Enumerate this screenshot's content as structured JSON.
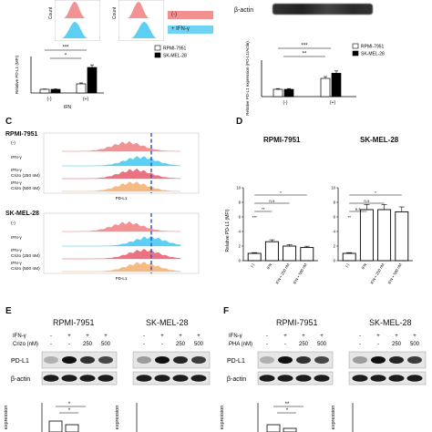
{
  "panelA": {
    "count1": "Count",
    "count2": "Count",
    "legend_boxes": [
      "(-)",
      "+ IFN-γ"
    ],
    "chart_data": {
      "type": "bar",
      "categories": [
        "(-)",
        "(+)"
      ],
      "xlabel": "IFN",
      "ylabel": "Relative PD-L1 (MFI)",
      "series": [
        {
          "name": "RPMI-7951",
          "values": [
            1.0,
            2.5
          ]
        },
        {
          "name": "SK-MEL-28",
          "values": [
            1.0,
            7.0
          ]
        }
      ],
      "ylim": [
        0,
        10
      ],
      "significance": [
        "*",
        "***"
      ]
    }
  },
  "panelB": {
    "band_label": "β-actin",
    "chart_data": {
      "type": "bar",
      "categories": [
        "(-)",
        "(+)"
      ],
      "ylabel": "Relative PD-L1 expression (PD-L1/Actin)",
      "series": [
        {
          "name": "RPMI-7951",
          "values": [
            1.0,
            2.5
          ]
        },
        {
          "name": "SK-MEL-28",
          "values": [
            1.0,
            3.2
          ]
        }
      ],
      "ylim": [
        0,
        5
      ],
      "significance": [
        "**",
        "***"
      ]
    }
  },
  "panelC": {
    "letter": "C",
    "group1": "RPMI-7951",
    "group2": "SK-MEL-28",
    "rows": [
      "(-)",
      "IFN-γ",
      "IFN-γ\nCrizo (250 nM)",
      "IFN-γ\nCrizo (500 nM)"
    ],
    "xaxis": "PD-L1",
    "colors": [
      "#f08080",
      "#40c8f0",
      "#e85a6a",
      "#f4b070"
    ]
  },
  "panelD": {
    "letter": "D",
    "title1": "RPMI-7951",
    "title2": "SK-MEL-28",
    "chart_data": [
      {
        "type": "bar",
        "title": "RPMI-7951",
        "categories": [
          "(-)",
          "IFN",
          "IFN + 250 nM",
          "IFN + 500 nM"
        ],
        "values": [
          1.0,
          2.6,
          2.0,
          1.8
        ],
        "ylabel": "Relative PD-L1 (MFI)",
        "ylim": [
          0,
          10
        ],
        "significance": [
          "*",
          "n.s",
          "**",
          "***"
        ]
      },
      {
        "type": "bar",
        "title": "SK-MEL-28",
        "categories": [
          "(-)",
          "IFN",
          "IFN + 250 nM",
          "IFN + 500 nM"
        ],
        "values": [
          1.0,
          7.0,
          7.0,
          6.7
        ],
        "ylim": [
          0,
          10
        ],
        "significance": [
          "*",
          "n.s",
          "n.s",
          "**"
        ]
      }
    ]
  },
  "panelE": {
    "letter": "E",
    "group1": "RPMI-7951",
    "group2": "SK-MEL-28",
    "row1_label": "IFN-γ",
    "row2_label": "Crizo (nM)",
    "ifn": [
      "-",
      "+",
      "+",
      "+",
      "-",
      "+",
      "+",
      "+"
    ],
    "drug": [
      "-",
      "-",
      "250",
      "500",
      "-",
      "-",
      "250",
      "500"
    ],
    "bands": [
      "PD-L1",
      "β-actin"
    ],
    "ylabel": "expression",
    "sig": [
      "*",
      "*"
    ]
  },
  "panelF": {
    "letter": "F",
    "group1": "RPMI-7951",
    "group2": "SK-MEL-28",
    "row1_label": "IFN-γ",
    "row2_label": "PHA (nM)",
    "ifn": [
      "-",
      "+",
      "+",
      "+",
      "-",
      "+",
      "+",
      "+"
    ],
    "drug": [
      "-",
      "-",
      "250",
      "500",
      "-",
      "-",
      "250",
      "500"
    ],
    "bands": [
      "PD-L1",
      "β-actin"
    ],
    "ylabel": "expression",
    "sig": [
      "**",
      "*"
    ]
  }
}
